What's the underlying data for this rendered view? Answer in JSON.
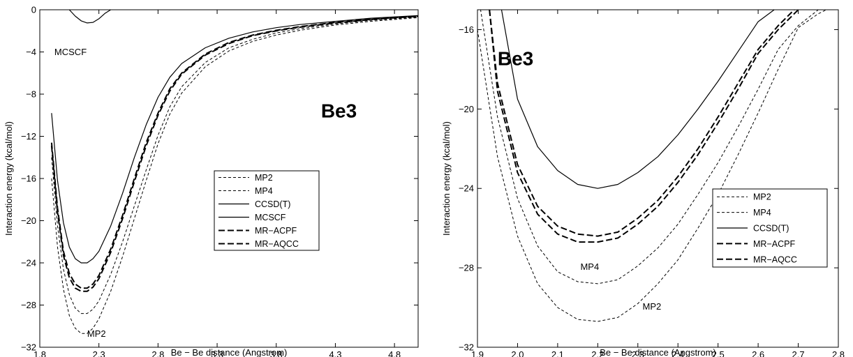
{
  "chart_data": [
    {
      "type": "line",
      "xlabel": "Be − Be distance (Angstrom)",
      "ylabel": "Interaction energy (kcal/mol)",
      "xlim": [
        1.8,
        5.0
      ],
      "ylim": [
        -32,
        0
      ],
      "xticks": [
        "1.8",
        "2.3",
        "2.8",
        "3.3",
        "3.8",
        "4.3",
        "4.8"
      ],
      "yticks": [
        "0",
        "−4",
        "−8",
        "−12",
        "−16",
        "−20",
        "−24",
        "−28",
        "−32"
      ],
      "grid": false,
      "legend_position": "center-right",
      "annotations": [
        {
          "text": "Be3",
          "x": 4.33,
          "y": -10.2,
          "style": "big"
        },
        {
          "text": "MCSCF",
          "x": 2.06,
          "y": -4.3,
          "style": "label"
        },
        {
          "text": "MP2",
          "x": 2.28,
          "y": -31.0,
          "style": "label"
        }
      ],
      "series": [
        {
          "name": "MP2",
          "style": "dashed",
          "x": [
            1.9,
            1.95,
            2.0,
            2.05,
            2.1,
            2.15,
            2.2,
            2.25,
            2.3,
            2.4,
            2.5,
            2.6,
            2.7,
            2.8,
            2.9,
            3.0,
            3.2,
            3.4,
            3.6,
            3.8,
            4.0,
            4.3,
            4.6,
            5.0
          ],
          "y": [
            -16.0,
            -22.5,
            -26.5,
            -29.0,
            -30.2,
            -30.7,
            -30.7,
            -30.2,
            -29.3,
            -26.7,
            -23.4,
            -19.8,
            -16.2,
            -12.7,
            -9.9,
            -7.9,
            -5.4,
            -3.9,
            -3.0,
            -2.4,
            -1.95,
            -1.45,
            -1.1,
            -0.75
          ]
        },
        {
          "name": "MP4",
          "style": "dashed",
          "x": [
            1.9,
            1.95,
            2.0,
            2.05,
            2.1,
            2.15,
            2.2,
            2.25,
            2.3,
            2.4,
            2.5,
            2.6,
            2.7,
            2.8,
            2.9,
            3.0,
            3.2,
            3.4,
            3.6,
            3.8,
            4.0,
            4.3,
            4.6,
            5.0
          ],
          "y": [
            -14.0,
            -20.5,
            -24.6,
            -27.0,
            -28.3,
            -28.8,
            -28.8,
            -28.4,
            -27.6,
            -25.1,
            -22.0,
            -18.6,
            -15.2,
            -11.9,
            -9.2,
            -7.3,
            -5.0,
            -3.6,
            -2.8,
            -2.2,
            -1.8,
            -1.35,
            -1.0,
            -0.7
          ]
        },
        {
          "name": "CCSD(T)",
          "style": "solid",
          "x": [
            1.9,
            1.95,
            2.0,
            2.05,
            2.1,
            2.15,
            2.2,
            2.25,
            2.3,
            2.4,
            2.5,
            2.6,
            2.7,
            2.8,
            2.9,
            3.0,
            3.2,
            3.4,
            3.6,
            3.8,
            4.0,
            4.3,
            4.6,
            5.0
          ],
          "y": [
            -9.8,
            -16.2,
            -20.2,
            -22.5,
            -23.6,
            -24.0,
            -24.0,
            -23.6,
            -22.9,
            -20.5,
            -17.4,
            -14.0,
            -10.9,
            -8.3,
            -6.4,
            -5.1,
            -3.6,
            -2.7,
            -2.1,
            -1.7,
            -1.4,
            -1.1,
            -0.8,
            -0.55
          ]
        },
        {
          "name": "MCSCF",
          "style": "solid",
          "x": [
            2.05,
            2.1,
            2.15,
            2.2,
            2.25,
            2.3,
            2.35,
            2.4
          ],
          "y": [
            0.0,
            -0.6,
            -1.05,
            -1.25,
            -1.2,
            -0.85,
            -0.35,
            0.0
          ]
        },
        {
          "name": "MR−ACPF",
          "style": "longdash",
          "x": [
            1.9,
            1.95,
            2.0,
            2.05,
            2.1,
            2.15,
            2.2,
            2.25,
            2.3,
            2.4,
            2.5,
            2.6,
            2.7,
            2.8,
            2.9,
            3.0,
            3.2,
            3.4,
            3.6,
            3.8,
            4.0,
            4.3,
            4.6,
            5.0
          ],
          "y": [
            -12.6,
            -18.8,
            -22.9,
            -25.0,
            -26.0,
            -26.4,
            -26.4,
            -26.0,
            -25.2,
            -22.7,
            -19.5,
            -16.0,
            -12.6,
            -9.8,
            -7.5,
            -6.0,
            -4.2,
            -3.1,
            -2.4,
            -1.95,
            -1.6,
            -1.2,
            -0.9,
            -0.6
          ]
        },
        {
          "name": "MR−AQCC",
          "style": "longdash",
          "x": [
            1.9,
            1.95,
            2.0,
            2.05,
            2.1,
            2.15,
            2.2,
            2.25,
            2.3,
            2.4,
            2.5,
            2.6,
            2.7,
            2.8,
            2.9,
            3.0,
            3.2,
            3.4,
            3.6,
            3.8,
            4.0,
            4.3,
            4.6,
            5.0
          ],
          "y": [
            -12.9,
            -19.2,
            -23.3,
            -25.4,
            -26.4,
            -26.7,
            -26.7,
            -26.3,
            -25.5,
            -23.0,
            -19.8,
            -16.3,
            -12.9,
            -10.0,
            -7.7,
            -6.1,
            -4.3,
            -3.2,
            -2.45,
            -2.0,
            -1.65,
            -1.25,
            -0.92,
            -0.62
          ]
        }
      ]
    },
    {
      "type": "line",
      "xlabel": "Be − Be distance (Angstrom)",
      "ylabel": "Interaction energy (kcal/mol)",
      "xlim": [
        1.9,
        2.8
      ],
      "ylim": [
        -32,
        -15
      ],
      "xticks": [
        "1.9",
        "2.0",
        "2.1",
        "2.2",
        "2.3",
        "2.4",
        "2.5",
        "2.6",
        "2.7",
        "2.8"
      ],
      "yticks": [
        "−16",
        "−20",
        "−24",
        "−28",
        "−32"
      ],
      "grid": false,
      "legend_position": "center-right",
      "annotations": [
        {
          "text": "Be3",
          "x": 1.995,
          "y": -17.8,
          "style": "big"
        },
        {
          "text": "MP4",
          "x": 2.18,
          "y": -28.1,
          "style": "label"
        },
        {
          "text": "MP2",
          "x": 2.335,
          "y": -30.1,
          "style": "label"
        }
      ],
      "series": [
        {
          "name": "MP2",
          "style": "dashed",
          "x": [
            1.9,
            1.95,
            2.0,
            2.05,
            2.1,
            2.15,
            2.2,
            2.25,
            2.3,
            2.35,
            2.4,
            2.45,
            2.5,
            2.55,
            2.6,
            2.65,
            2.7,
            2.75,
            2.77
          ],
          "y": [
            -16.0,
            -22.4,
            -26.4,
            -28.8,
            -30.0,
            -30.6,
            -30.7,
            -30.5,
            -29.8,
            -28.8,
            -27.6,
            -26.0,
            -24.3,
            -22.3,
            -20.2,
            -18.0,
            -15.9,
            -15.2,
            -15.0
          ]
        },
        {
          "name": "MP4",
          "style": "dashed",
          "x": [
            1.9,
            1.95,
            2.0,
            2.05,
            2.1,
            2.15,
            2.2,
            2.25,
            2.3,
            2.35,
            2.4,
            2.45,
            2.5,
            2.55,
            2.6,
            2.65,
            2.7,
            2.75
          ],
          "y": [
            -14.0,
            -20.4,
            -24.5,
            -26.9,
            -28.2,
            -28.7,
            -28.8,
            -28.6,
            -27.9,
            -27.0,
            -25.8,
            -24.3,
            -22.7,
            -20.9,
            -19.0,
            -17.0,
            -15.8,
            -15.0
          ]
        },
        {
          "name": "CCSD(T)",
          "style": "solid",
          "x": [
            1.96,
            2.0,
            2.05,
            2.1,
            2.15,
            2.2,
            2.25,
            2.3,
            2.35,
            2.4,
            2.45,
            2.5,
            2.55,
            2.6,
            2.64
          ],
          "y": [
            -15.0,
            -19.5,
            -21.9,
            -23.1,
            -23.8,
            -24.0,
            -23.8,
            -23.2,
            -22.4,
            -21.3,
            -20.0,
            -18.6,
            -17.1,
            -15.6,
            -15.0
          ]
        },
        {
          "name": "MR−ACPF",
          "style": "longdash",
          "x": [
            1.93,
            1.95,
            2.0,
            2.05,
            2.1,
            2.15,
            2.2,
            2.25,
            2.3,
            2.35,
            2.4,
            2.45,
            2.5,
            2.55,
            2.6,
            2.65,
            2.69
          ],
          "y": [
            -15.0,
            -18.7,
            -22.8,
            -24.9,
            -25.9,
            -26.3,
            -26.4,
            -26.2,
            -25.5,
            -24.6,
            -23.4,
            -22.0,
            -20.4,
            -18.7,
            -17.0,
            -15.8,
            -15.0
          ]
        },
        {
          "name": "MR−AQCC",
          "style": "longdash",
          "x": [
            1.93,
            1.95,
            2.0,
            2.05,
            2.1,
            2.15,
            2.2,
            2.25,
            2.3,
            2.35,
            2.4,
            2.45,
            2.5,
            2.55,
            2.6,
            2.65,
            2.7
          ],
          "y": [
            -15.0,
            -19.1,
            -23.2,
            -25.3,
            -26.3,
            -26.7,
            -26.7,
            -26.5,
            -25.8,
            -24.9,
            -23.7,
            -22.3,
            -20.7,
            -19.0,
            -17.2,
            -16.0,
            -15.0
          ]
        }
      ]
    }
  ]
}
